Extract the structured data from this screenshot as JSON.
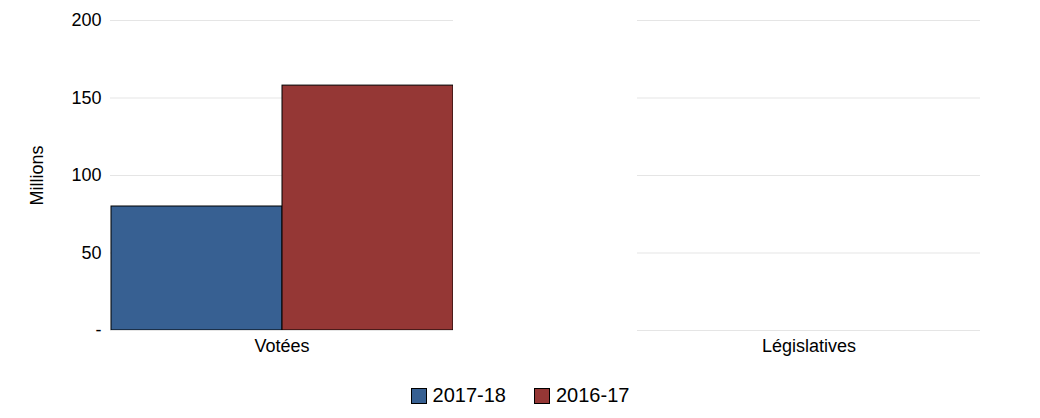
{
  "chart_data": {
    "type": "bar",
    "categories": [
      "Votées",
      "Législatives"
    ],
    "series": [
      {
        "name": "2017-18",
        "color": "#376092",
        "values": [
          80,
          0
        ]
      },
      {
        "name": "2016-17",
        "color": "#953735",
        "values": [
          158,
          0
        ]
      }
    ],
    "y_label": "Millions",
    "ylim": [
      0,
      200
    ],
    "yticks": [
      {
        "value": 0,
        "label": "-"
      },
      50,
      100,
      150,
      200
    ],
    "grid": true,
    "legend": "bottom"
  }
}
